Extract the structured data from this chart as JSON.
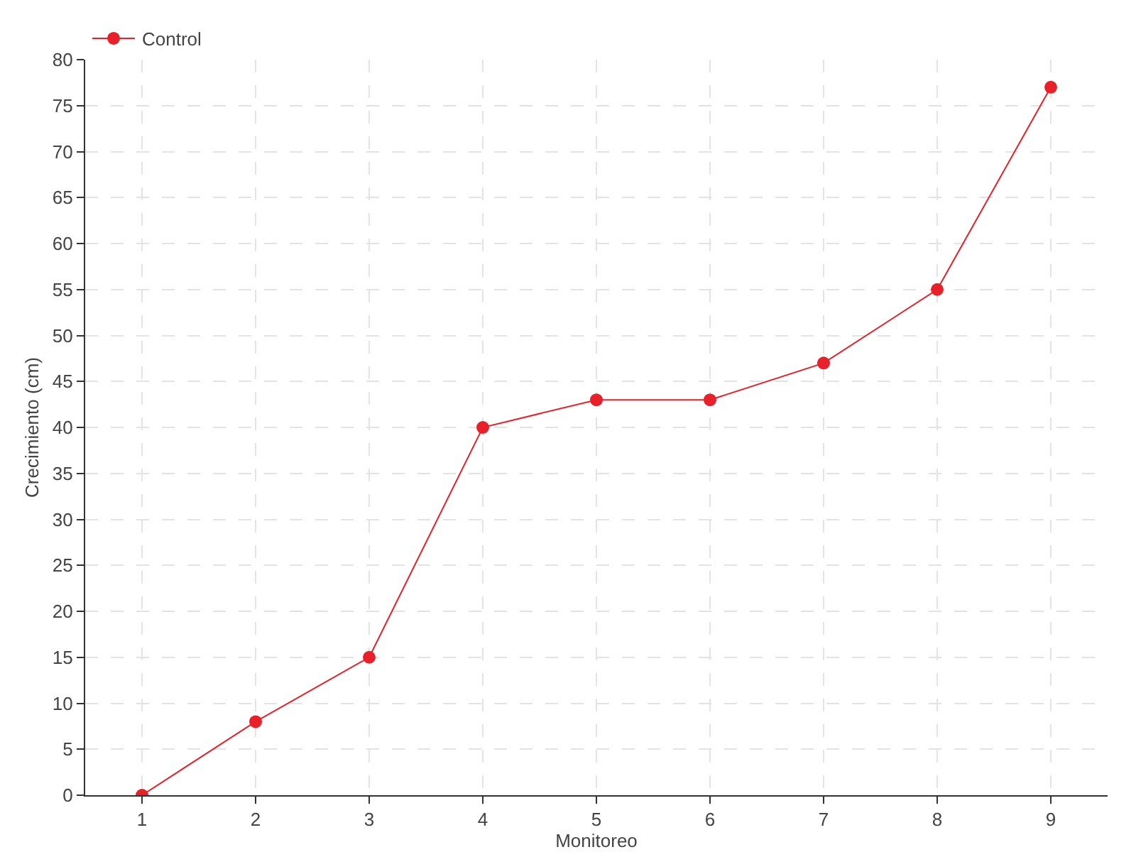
{
  "chart_data": {
    "type": "line",
    "xlabel": "Monitoreo",
    "ylabel": "Crecimiento (cm)",
    "categories": [
      "1",
      "2",
      "3",
      "4",
      "5",
      "6",
      "7",
      "8",
      "9"
    ],
    "series": [
      {
        "name": "Control",
        "color": "#e8202a",
        "values": [
          0,
          8,
          15,
          40,
          43,
          43,
          47,
          55,
          77
        ]
      }
    ],
    "ylim": [
      0,
      80
    ],
    "yticks": [
      0,
      5,
      10,
      15,
      20,
      25,
      30,
      35,
      40,
      45,
      50,
      55,
      60,
      65,
      70,
      75,
      80
    ],
    "grid": true,
    "legend": "top left",
    "marker": "circle",
    "line_style": "solid"
  }
}
